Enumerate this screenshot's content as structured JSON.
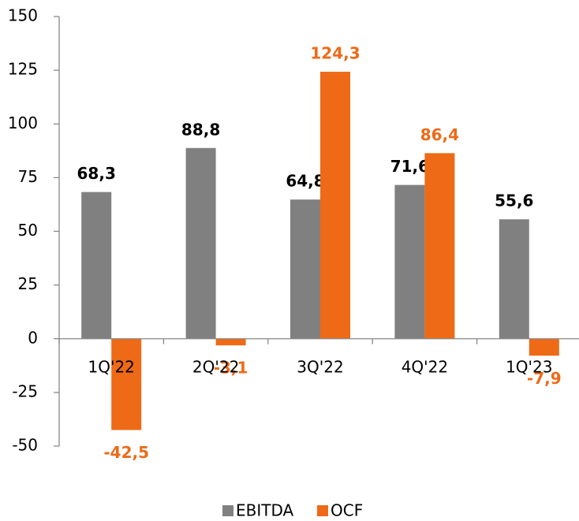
{
  "chart_data": {
    "type": "bar",
    "categories": [
      "1Q'22",
      "2Q'22",
      "3Q'22",
      "4Q'22",
      "1Q'23"
    ],
    "series": [
      {
        "name": "EBITDA",
        "color": "#808080",
        "values": [
          68.3,
          88.8,
          64.8,
          71.6,
          55.6
        ],
        "value_labels": [
          "68,3",
          "88,8",
          "64,8",
          "71,6",
          "55,6"
        ],
        "label_color": "#000000"
      },
      {
        "name": "OCF",
        "color": "#ee6a17",
        "values": [
          -42.5,
          -3.1,
          124.3,
          86.4,
          -7.9
        ],
        "value_labels": [
          "-42,5",
          "-3,1",
          "124,3",
          "86,4",
          "-7,9"
        ],
        "label_color": "#ee6a17"
      }
    ],
    "ylim": [
      -50,
      150
    ],
    "yticks": [
      -50,
      -25,
      0,
      25,
      50,
      75,
      100,
      125,
      150
    ],
    "legend": "bottom"
  }
}
